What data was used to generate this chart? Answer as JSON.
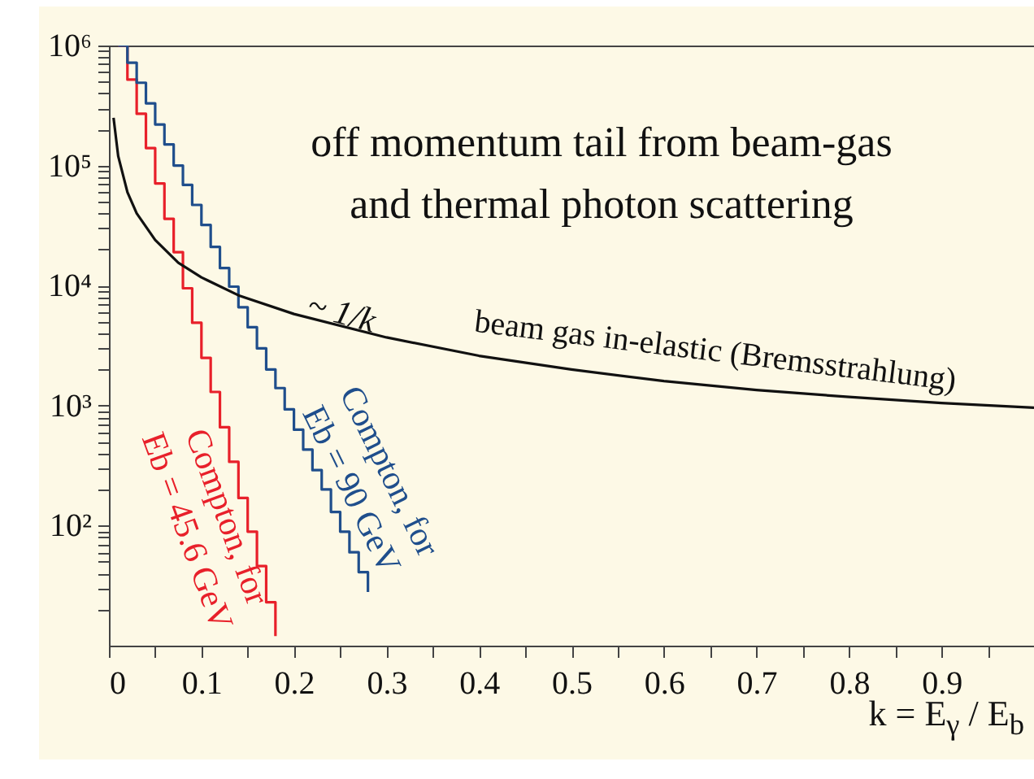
{
  "chart_data": {
    "type": "line",
    "xlabel": "k = E$_{γ}$ / E$_{b}$",
    "annotations": [
      "off momentum tail from beam-gas\nand thermal photon scattering",
      "~ 1/k"
    ],
    "xlim": [
      0,
      1
    ],
    "ylim": [
      10,
      1000000
    ],
    "log": "y",
    "grid": false,
    "legend": false,
    "marker": "none",
    "line_style": "solid",
    "xticks": [
      0,
      {
        "value": 0.05,
        "label": null
      },
      0.1,
      {
        "value": 0.15,
        "label": null
      },
      0.2,
      {
        "value": 0.25,
        "label": null
      },
      0.3,
      {
        "value": 0.35,
        "label": null
      },
      0.4,
      {
        "value": 0.45,
        "label": null
      },
      0.5,
      {
        "value": 0.55,
        "label": null
      },
      0.6,
      {
        "value": 0.65,
        "label": null
      },
      0.7,
      {
        "value": 0.75,
        "label": null
      },
      0.8,
      {
        "value": 0.85,
        "label": null
      },
      0.9,
      {
        "value": 0.95,
        "label": null
      }
    ],
    "yticks": [
      {
        "value": 20,
        "label": null
      },
      {
        "value": 30,
        "label": null
      },
      {
        "value": 40,
        "label": null
      },
      {
        "value": 50,
        "label": null
      },
      {
        "value": 60,
        "label": null
      },
      {
        "value": 70,
        "label": null
      },
      {
        "value": 80,
        "label": null
      },
      {
        "value": 90,
        "label": null
      },
      {
        "value": 100,
        "label": "10²"
      },
      {
        "value": 200,
        "label": null
      },
      {
        "value": 300,
        "label": null
      },
      {
        "value": 400,
        "label": null
      },
      {
        "value": 500,
        "label": null
      },
      {
        "value": 600,
        "label": null
      },
      {
        "value": 700,
        "label": null
      },
      {
        "value": 800,
        "label": null
      },
      {
        "value": 900,
        "label": null
      },
      {
        "value": 1000,
        "label": "10³"
      },
      {
        "value": 2000,
        "label": null
      },
      {
        "value": 3000,
        "label": null
      },
      {
        "value": 4000,
        "label": null
      },
      {
        "value": 5000,
        "label": null
      },
      {
        "value": 6000,
        "label": null
      },
      {
        "value": 7000,
        "label": null
      },
      {
        "value": 8000,
        "label": null
      },
      {
        "value": 9000,
        "label": null
      },
      {
        "value": 10000,
        "label": "10⁴"
      },
      {
        "value": 20000,
        "label": null
      },
      {
        "value": 30000,
        "label": null
      },
      {
        "value": 40000,
        "label": null
      },
      {
        "value": 50000,
        "label": null
      },
      {
        "value": 60000,
        "label": null
      },
      {
        "value": 70000,
        "label": null
      },
      {
        "value": 80000,
        "label": null
      },
      {
        "value": 90000,
        "label": null
      },
      {
        "value": 100000,
        "label": "10⁵"
      },
      {
        "value": 200000,
        "label": null
      },
      {
        "value": 300000,
        "label": null
      },
      {
        "value": 400000,
        "label": null
      },
      {
        "value": 500000,
        "label": null
      },
      {
        "value": 600000,
        "label": null
      },
      {
        "value": 700000,
        "label": null
      },
      {
        "value": 800000,
        "label": null
      },
      {
        "value": 900000,
        "label": null
      },
      {
        "value": 1000000,
        "label": "10⁶"
      }
    ],
    "series": [
      {
        "name": "Compton, for\nEb = 45.6 GeV",
        "type": "step",
        "color": "#e8202a",
        "x": [
          0.01,
          0.02,
          0.03,
          0.04,
          0.05,
          0.06,
          0.07,
          0.08,
          0.09,
          0.1,
          0.11,
          0.12,
          0.13,
          0.14,
          0.15,
          0.16,
          0.17,
          0.18
        ],
        "values": [
          1000000,
          520000,
          270000,
          140000,
          71000,
          36000,
          19000,
          9500,
          4900,
          2500,
          1300,
          660,
          340,
          170,
          89,
          46,
          23,
          12
        ]
      },
      {
        "name": "Compton, for\nEb = 90  GeV",
        "type": "step",
        "color": "#1f4e8c",
        "x": [
          0.01,
          0.02,
          0.03,
          0.04,
          0.05,
          0.06,
          0.07,
          0.08,
          0.09,
          0.1,
          0.11,
          0.12,
          0.13,
          0.14,
          0.15,
          0.16,
          0.17,
          0.18,
          0.19,
          0.2,
          0.21,
          0.22,
          0.23,
          0.24,
          0.25,
          0.26,
          0.27,
          0.28
        ],
        "values": [
          1000000,
          720000,
          490000,
          330000,
          220000,
          150000,
          100000,
          69000,
          47000,
          32000,
          21000,
          14000,
          9800,
          6600,
          4500,
          3000,
          2000,
          1400,
          930,
          630,
          430,
          290,
          200,
          130,
          89,
          60,
          41,
          28
        ]
      },
      {
        "name": "beam gas in-elastic (Bremsstrahlung)",
        "color": "#111111",
        "x": [
          0.005,
          0.01,
          0.02,
          0.03,
          0.05,
          0.075,
          0.1,
          0.14,
          0.2,
          0.3,
          0.4,
          0.5,
          0.6,
          0.7,
          0.8,
          0.9,
          1.0
        ],
        "values": [
          250000,
          120000,
          60000,
          40000,
          24000,
          15500,
          11700,
          8300,
          5800,
          3700,
          2600,
          2000,
          1600,
          1350,
          1180,
          1050,
          960
        ]
      }
    ]
  }
}
